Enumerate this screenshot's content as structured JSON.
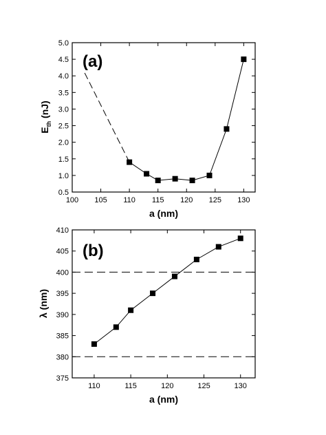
{
  "chart_data": [
    {
      "type": "scatter",
      "panel_label": "(a)",
      "xlabel": "a (nm)",
      "ylabel_main": "E",
      "ylabel_sub": "th",
      "ylabel_tail": " (nJ)",
      "xlim": [
        100,
        132
      ],
      "ylim": [
        0.5,
        5.0
      ],
      "xticks": [
        100,
        105,
        110,
        115,
        120,
        125,
        130
      ],
      "yticks": [
        "0.5",
        "1.0",
        "1.5",
        "2.0",
        "2.5",
        "3.0",
        "3.5",
        "4.0",
        "4.5",
        "5.0"
      ],
      "x": [
        110,
        113,
        115,
        118,
        121,
        124,
        127,
        130
      ],
      "y": [
        1.4,
        1.05,
        0.85,
        0.9,
        0.85,
        1.0,
        2.4,
        4.5
      ],
      "extrapolation": {
        "style": "dashed",
        "from": [
          110,
          1.4
        ],
        "to": [
          102,
          4.15
        ]
      },
      "grid": false
    },
    {
      "type": "scatter",
      "panel_label": "(b)",
      "xlabel": "a (nm)",
      "ylabel": "λ (nm)",
      "xlim": [
        107,
        132
      ],
      "ylim": [
        375,
        410
      ],
      "xticks": [
        110,
        115,
        120,
        125,
        130
      ],
      "yticks": [
        375,
        380,
        385,
        390,
        395,
        400,
        405,
        410
      ],
      "x": [
        110,
        113,
        115,
        118,
        121,
        124,
        127,
        130
      ],
      "y": [
        383,
        387,
        391,
        395,
        399,
        403,
        406,
        408
      ],
      "reference_lines": [
        {
          "orientation": "horizontal",
          "style": "dashed",
          "y": 400
        },
        {
          "orientation": "horizontal",
          "style": "dashed",
          "y": 380
        }
      ],
      "grid": false
    }
  ]
}
